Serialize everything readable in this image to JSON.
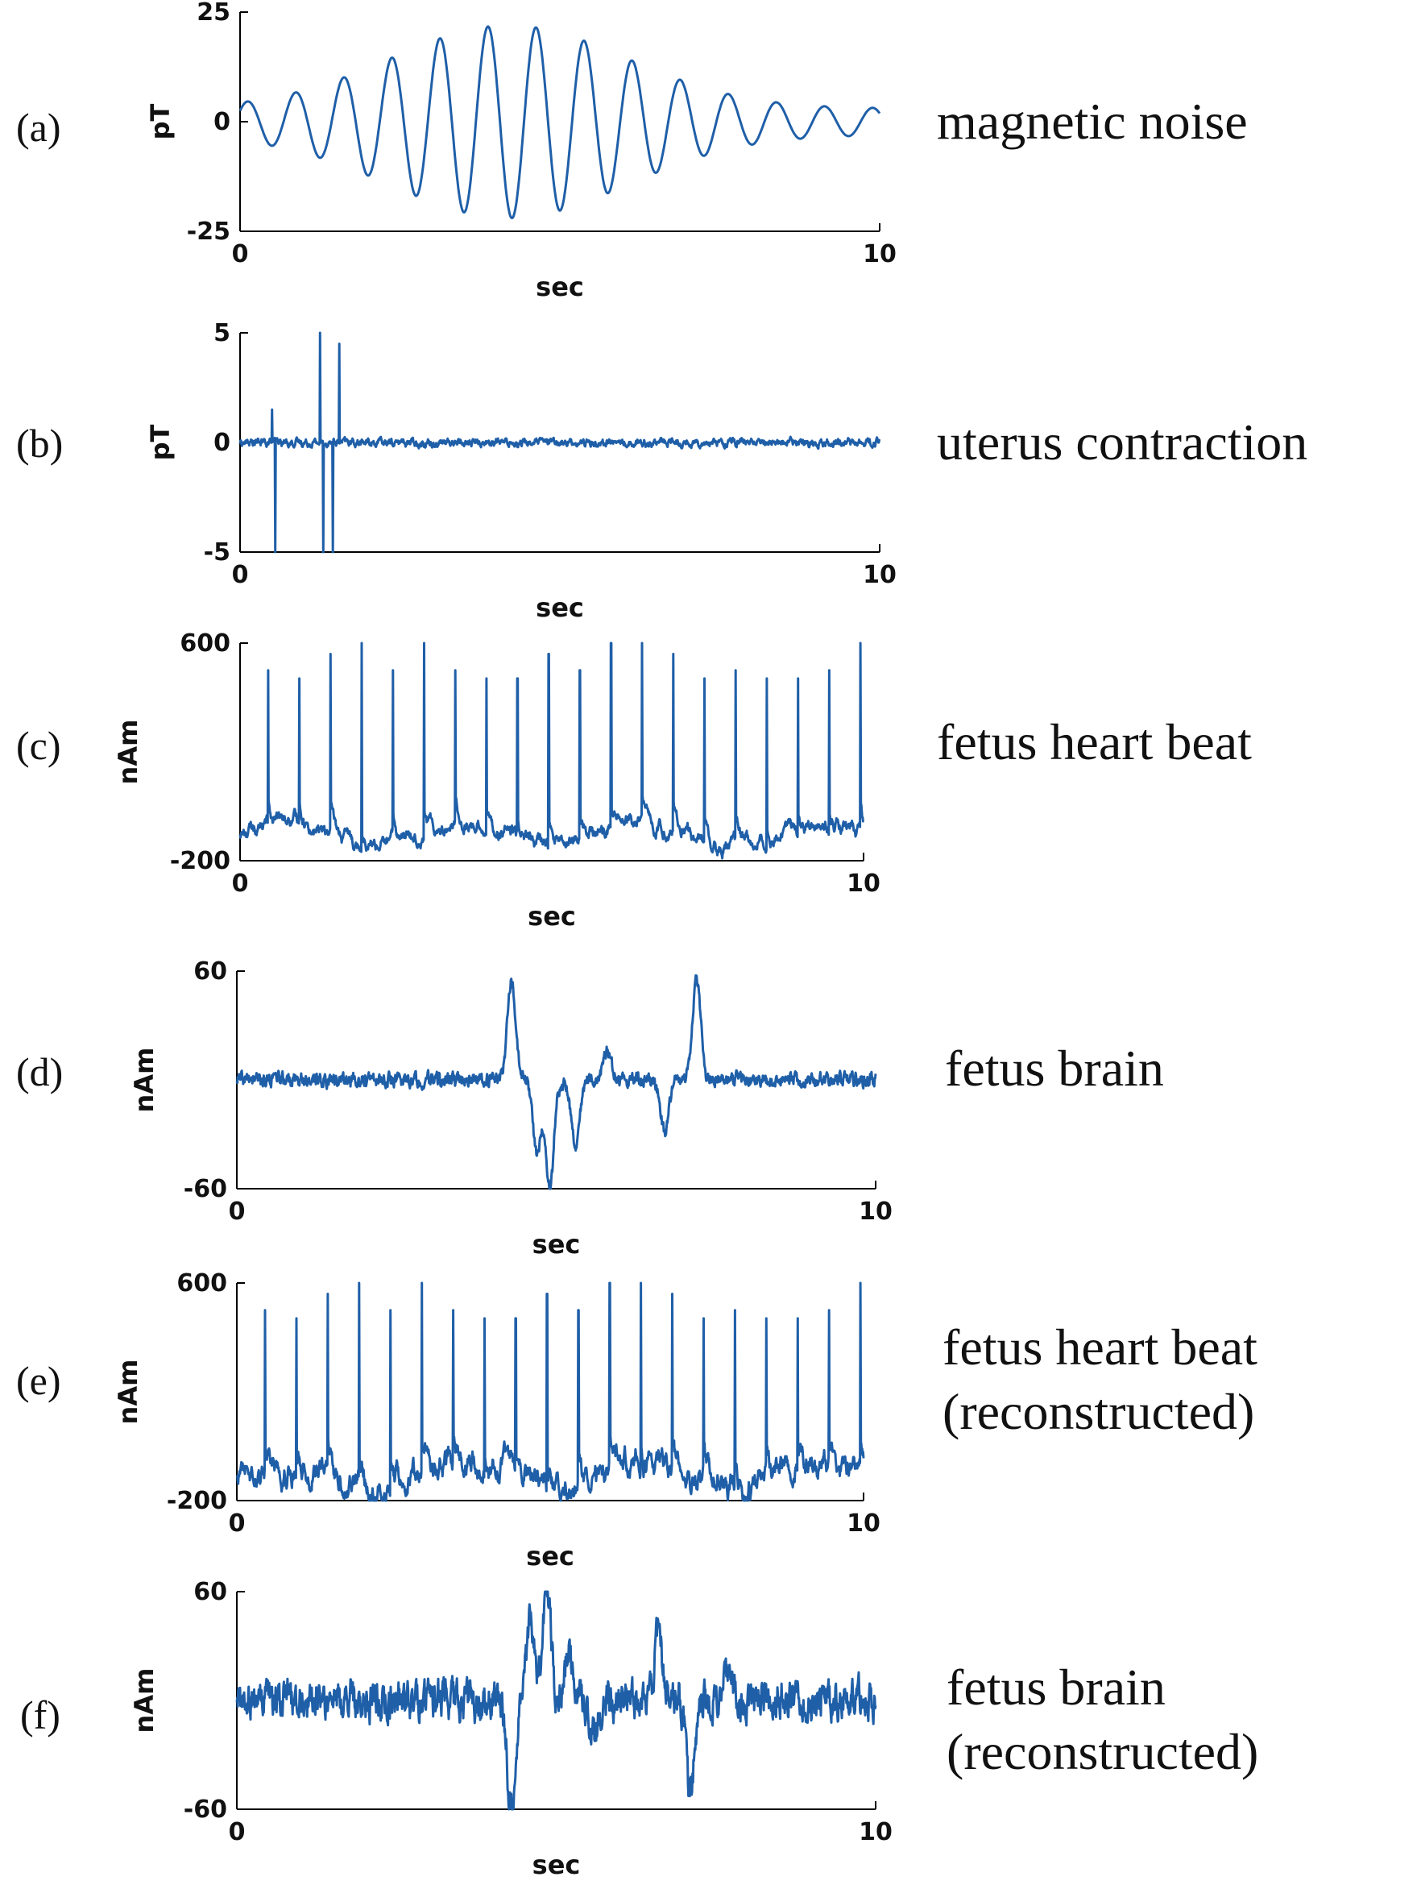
{
  "line_color": "#1f5fa8",
  "chart_data": [
    {
      "type": "line",
      "panel_label": "(a)",
      "description": [
        "magnetic noise"
      ],
      "xlabel": "sec",
      "ylabel": "pT",
      "xlim": [
        0,
        10
      ],
      "ylim": [
        -25,
        25
      ],
      "xticks": [
        "0",
        "10"
      ],
      "yticks": [
        "25",
        "0",
        "-25"
      ],
      "signal": {
        "kind": "sine_burst",
        "freq_hz": 1.33,
        "peak_amplitude": 22,
        "peak_time_s": 4.2,
        "start_amplitude": 3,
        "end_amplitude": 3
      }
    },
    {
      "type": "line",
      "panel_label": "(b)",
      "description": [
        "uterus contraction"
      ],
      "xlabel": "sec",
      "ylabel": "pT",
      "xlim": [
        0,
        10
      ],
      "ylim": [
        -5,
        5
      ],
      "xticks": [
        "0",
        "10"
      ],
      "yticks": [
        "5",
        "0",
        "-5"
      ],
      "signal": {
        "kind": "noise_with_spikes",
        "baseline": 0,
        "noise_amplitude": 0.25,
        "spikes": [
          {
            "t": 0.5,
            "v": 1.5
          },
          {
            "t": 0.55,
            "v": -5
          },
          {
            "t": 1.25,
            "v": 5
          },
          {
            "t": 1.3,
            "v": -5
          },
          {
            "t": 1.45,
            "v": -5
          },
          {
            "t": 1.55,
            "v": 4.5
          }
        ]
      }
    },
    {
      "type": "line",
      "panel_label": "(c)",
      "description": [
        "fetus heart beat"
      ],
      "xlabel": "sec",
      "ylabel": "nAm",
      "xlim": [
        0,
        10
      ],
      "ylim": [
        -200,
        600
      ],
      "xticks": [
        "0",
        "10"
      ],
      "yticks": [
        "600",
        "-200"
      ],
      "signal": {
        "kind": "spike_train",
        "baseline": -100,
        "noise_amplitude": 30,
        "spike_times": [
          0.45,
          0.95,
          1.45,
          1.95,
          2.45,
          2.95,
          3.45,
          3.95,
          4.45,
          4.95,
          5.45,
          5.95,
          6.45,
          6.95,
          7.45,
          7.95,
          8.45,
          8.95,
          9.45,
          9.95
        ],
        "spike_peaks": [
          500,
          470,
          560,
          600,
          500,
          600,
          500,
          470,
          470,
          560,
          500,
          600,
          600,
          560,
          470,
          500,
          470,
          470,
          500,
          600
        ]
      }
    },
    {
      "type": "line",
      "panel_label": "(d)",
      "description": [
        "fetus brain"
      ],
      "xlabel": "sec",
      "ylabel": "nAm",
      "xlim": [
        0,
        10
      ],
      "ylim": [
        -60,
        60
      ],
      "xticks": [
        "0",
        "10"
      ],
      "yticks": [
        "60",
        "-60"
      ],
      "signal": {
        "kind": "noisy_events",
        "baseline": 0,
        "noise_amplitude": 3,
        "events": [
          {
            "t": 4.3,
            "v": 55
          },
          {
            "t": 4.7,
            "v": -40
          },
          {
            "t": 4.9,
            "v": -60
          },
          {
            "t": 5.3,
            "v": -35
          },
          {
            "t": 5.8,
            "v": 15
          },
          {
            "t": 6.7,
            "v": -30
          },
          {
            "t": 7.2,
            "v": 55
          }
        ]
      }
    },
    {
      "type": "line",
      "panel_label": "(e)",
      "description": [
        "fetus heart beat",
        "(reconstructed)"
      ],
      "xlabel": "sec",
      "ylabel": "nAm",
      "xlim": [
        0,
        10
      ],
      "ylim": [
        -200,
        600
      ],
      "xticks": [
        "0",
        "10"
      ],
      "yticks": [
        "600",
        "-200"
      ],
      "signal": {
        "kind": "spike_train",
        "baseline": -100,
        "noise_amplitude": 55,
        "spike_times": [
          0.45,
          0.95,
          1.45,
          1.95,
          2.45,
          2.95,
          3.45,
          3.95,
          4.45,
          4.95,
          5.45,
          5.95,
          6.45,
          6.95,
          7.45,
          7.95,
          8.45,
          8.95,
          9.45,
          9.95
        ],
        "spike_peaks": [
          500,
          470,
          560,
          600,
          500,
          600,
          500,
          470,
          470,
          560,
          500,
          600,
          600,
          560,
          470,
          500,
          470,
          470,
          500,
          600
        ]
      }
    },
    {
      "type": "line",
      "panel_label": "(f)",
      "description": [
        "fetus brain",
        "(reconstructed)"
      ],
      "xlabel": "sec",
      "ylabel": "nAm",
      "xlim": [
        0,
        10
      ],
      "ylim": [
        -60,
        60
      ],
      "xticks": [
        "0",
        "10"
      ],
      "yticks": [
        "60",
        "-60"
      ],
      "signal": {
        "kind": "noisy_events",
        "baseline": 0,
        "noise_amplitude": 8,
        "events": [
          {
            "t": 4.3,
            "v": -60
          },
          {
            "t": 4.6,
            "v": 45
          },
          {
            "t": 4.85,
            "v": 60
          },
          {
            "t": 5.2,
            "v": 25
          },
          {
            "t": 5.6,
            "v": -20
          },
          {
            "t": 6.6,
            "v": 35
          },
          {
            "t": 7.1,
            "v": -50
          },
          {
            "t": 7.7,
            "v": 20
          }
        ]
      }
    }
  ]
}
